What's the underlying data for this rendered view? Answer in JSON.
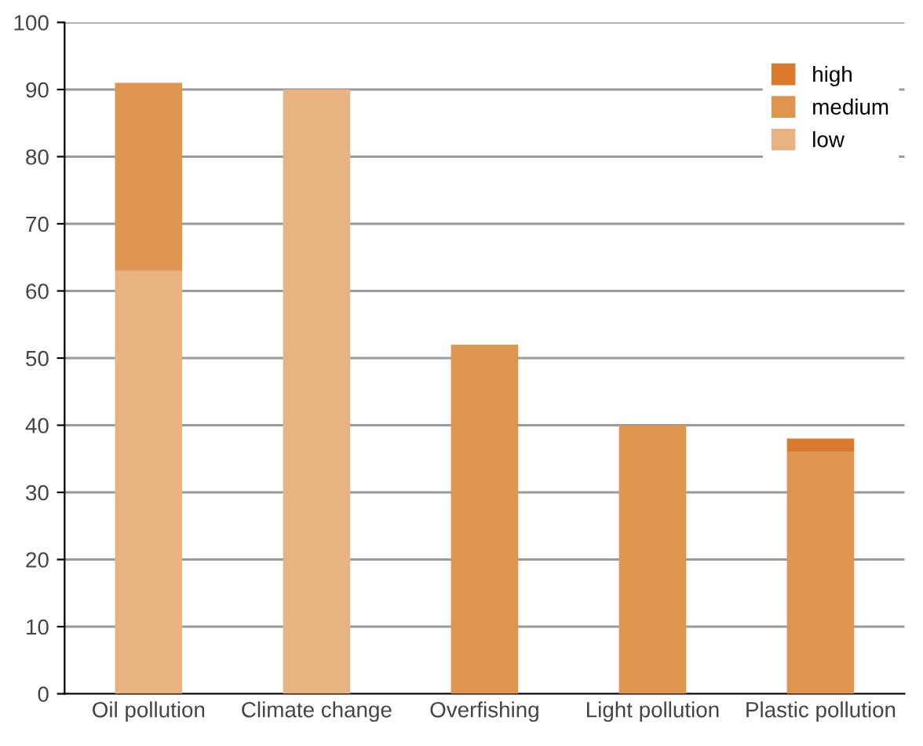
{
  "chart_data": {
    "type": "bar",
    "stacked": true,
    "categories": [
      "Oil pollution",
      "Climate change",
      "Overfishing",
      "Light pollution",
      "Plastic pollution"
    ],
    "series": [
      {
        "name": "low",
        "color": "#e8b380",
        "values": [
          63,
          90,
          0,
          0,
          0
        ]
      },
      {
        "name": "medium",
        "color": "#de9550",
        "values": [
          28,
          0,
          52,
          40,
          36
        ]
      },
      {
        "name": "high",
        "color": "#d97a2c",
        "values": [
          0,
          0,
          0,
          0,
          2
        ]
      }
    ],
    "ylim": [
      0,
      100
    ],
    "yticks": [
      0,
      10,
      20,
      30,
      40,
      50,
      60,
      70,
      80,
      90,
      100
    ],
    "grid": "y",
    "legend": "top right"
  }
}
